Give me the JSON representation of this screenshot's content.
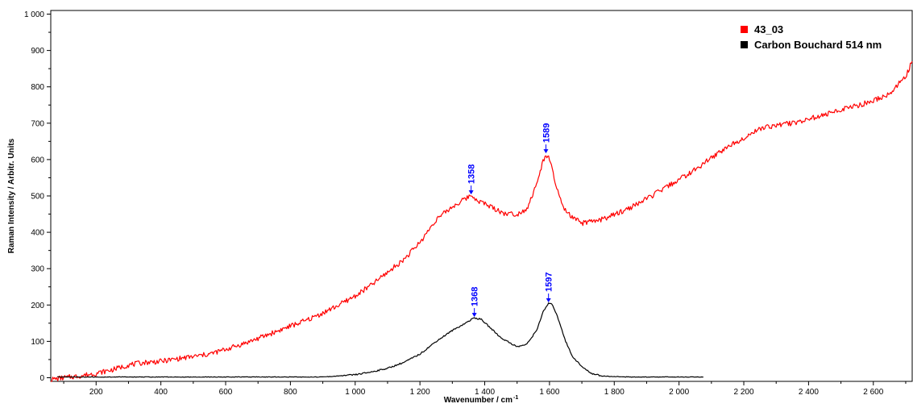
{
  "chart_data": {
    "type": "line",
    "xlabel": "Wavenumber / cm",
    "xlabel_sup": "-1",
    "ylabel": "Raman Intensity / Arbitr. Units",
    "xlim": [
      60,
      2720
    ],
    "ylim": [
      -10,
      1010
    ],
    "grid": false,
    "legend_position": "top-right",
    "x_ticks": [
      200,
      400,
      600,
      800,
      1000,
      1200,
      1400,
      1600,
      1800,
      2000,
      2200,
      2400,
      2600
    ],
    "x_tick_labels": [
      "200",
      "400",
      "600",
      "800",
      "1 000",
      "1 200",
      "1 400",
      "1 600",
      "1 800",
      "2 000",
      "2 200",
      "2 400",
      "2 600"
    ],
    "y_ticks": [
      0,
      100,
      200,
      300,
      400,
      500,
      600,
      700,
      800,
      900,
      1000
    ],
    "y_tick_labels": [
      "0",
      "100",
      "200",
      "300",
      "400",
      "500",
      "600",
      "700",
      "800",
      "900",
      "1 000"
    ],
    "series": [
      {
        "name": "43_03",
        "color": "#ff0000",
        "points": [
          [
            60,
            -5
          ],
          [
            100,
            0
          ],
          [
            150,
            5
          ],
          [
            200,
            12
          ],
          [
            250,
            22
          ],
          [
            300,
            35
          ],
          [
            350,
            42
          ],
          [
            400,
            45
          ],
          [
            450,
            52
          ],
          [
            500,
            58
          ],
          [
            550,
            65
          ],
          [
            600,
            78
          ],
          [
            650,
            92
          ],
          [
            700,
            108
          ],
          [
            750,
            125
          ],
          [
            800,
            142
          ],
          [
            850,
            158
          ],
          [
            900,
            178
          ],
          [
            950,
            200
          ],
          [
            1000,
            225
          ],
          [
            1050,
            255
          ],
          [
            1100,
            290
          ],
          [
            1150,
            325
          ],
          [
            1200,
            372
          ],
          [
            1250,
            435
          ],
          [
            1300,
            470
          ],
          [
            1340,
            492
          ],
          [
            1358,
            502
          ],
          [
            1380,
            487
          ],
          [
            1420,
            470
          ],
          [
            1460,
            452
          ],
          [
            1500,
            450
          ],
          [
            1530,
            465
          ],
          [
            1560,
            530
          ],
          [
            1580,
            595
          ],
          [
            1589,
            615
          ],
          [
            1600,
            600
          ],
          [
            1620,
            530
          ],
          [
            1640,
            470
          ],
          [
            1670,
            440
          ],
          [
            1700,
            425
          ],
          [
            1750,
            432
          ],
          [
            1800,
            448
          ],
          [
            1850,
            468
          ],
          [
            1900,
            492
          ],
          [
            1950,
            518
          ],
          [
            2000,
            545
          ],
          [
            2050,
            572
          ],
          [
            2100,
            605
          ],
          [
            2150,
            635
          ],
          [
            2200,
            660
          ],
          [
            2250,
            685
          ],
          [
            2300,
            695
          ],
          [
            2350,
            700
          ],
          [
            2400,
            712
          ],
          [
            2450,
            722
          ],
          [
            2500,
            738
          ],
          [
            2550,
            748
          ],
          [
            2600,
            762
          ],
          [
            2650,
            780
          ],
          [
            2700,
            830
          ],
          [
            2720,
            870
          ]
        ]
      },
      {
        "name": "Carbon Bouchard 514 nm",
        "color": "#000000",
        "points": [
          [
            80,
            2
          ],
          [
            900,
            2
          ],
          [
            950,
            5
          ],
          [
            1000,
            8
          ],
          [
            1050,
            16
          ],
          [
            1100,
            26
          ],
          [
            1150,
            42
          ],
          [
            1200,
            65
          ],
          [
            1250,
            100
          ],
          [
            1300,
            130
          ],
          [
            1340,
            150
          ],
          [
            1368,
            165
          ],
          [
            1390,
            160
          ],
          [
            1420,
            135
          ],
          [
            1450,
            110
          ],
          [
            1480,
            95
          ],
          [
            1500,
            85
          ],
          [
            1530,
            92
          ],
          [
            1560,
            130
          ],
          [
            1580,
            180
          ],
          [
            1597,
            205
          ],
          [
            1610,
            200
          ],
          [
            1630,
            155
          ],
          [
            1650,
            100
          ],
          [
            1670,
            60
          ],
          [
            1700,
            30
          ],
          [
            1730,
            12
          ],
          [
            1760,
            5
          ],
          [
            1800,
            3
          ],
          [
            1850,
            2
          ],
          [
            2075,
            2
          ]
        ]
      }
    ],
    "annotations": [
      {
        "text": "1358",
        "x": 1358,
        "y": 502,
        "color": "#0000ff"
      },
      {
        "text": "1589",
        "x": 1589,
        "y": 615,
        "color": "#0000ff"
      },
      {
        "text": "1368",
        "x": 1368,
        "y": 165,
        "color": "#0000ff"
      },
      {
        "text": "1597",
        "x": 1597,
        "y": 205,
        "color": "#0000ff"
      }
    ]
  }
}
